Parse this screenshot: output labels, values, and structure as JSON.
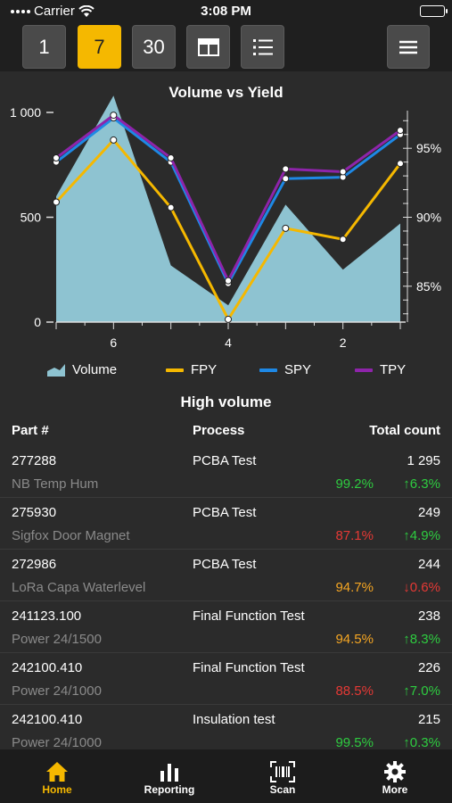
{
  "status": {
    "carrier": "Carrier",
    "time": "3:08 PM"
  },
  "toolbar": {
    "periods": [
      "1",
      "7",
      "30"
    ],
    "active_period": "7"
  },
  "colors": {
    "accent": "#f5b800",
    "volume": "#8ec3d1",
    "fpy": "#f5b800",
    "spy": "#1e88e5",
    "tpy": "#8e24aa",
    "green": "#2ecc40",
    "red": "#e53935",
    "orange": "#f5a623"
  },
  "chart_data": {
    "type": "area",
    "title": "Volume vs Yield",
    "x": [
      7,
      6.5,
      6,
      5.5,
      5,
      4.5,
      4,
      3.5,
      3,
      2.5,
      2,
      1.5,
      1
    ],
    "x_ticks": [
      "6",
      "4",
      "2"
    ],
    "y_left_ticks": [
      "0",
      "500",
      "1 000"
    ],
    "y_right_ticks": [
      "85%",
      "90%",
      "95%"
    ],
    "ylim_left": [
      0,
      1000
    ],
    "ylim_right": [
      82.4,
      97.6
    ],
    "series": [
      {
        "name": "Volume",
        "type": "area",
        "axis": "left",
        "x": [
          7,
          6,
          5,
          4,
          3,
          2,
          1
        ],
        "values": [
          600,
          1080,
          270,
          80,
          560,
          250,
          470
        ]
      },
      {
        "name": "FPY",
        "type": "line",
        "axis": "right",
        "x": [
          7,
          6,
          5,
          4,
          3,
          2,
          1
        ],
        "values": [
          91.1,
          95.6,
          90.7,
          82.6,
          89.2,
          88.4,
          93.9
        ]
      },
      {
        "name": "SPY",
        "type": "line",
        "axis": "right",
        "x": [
          7,
          6,
          5,
          4,
          3,
          2,
          1
        ],
        "values": [
          94.0,
          97.2,
          94.0,
          85.2,
          92.8,
          92.9,
          96.0
        ]
      },
      {
        "name": "TPY",
        "type": "line",
        "axis": "right",
        "x": [
          7,
          6,
          5,
          4,
          3,
          2,
          1
        ],
        "values": [
          94.3,
          97.4,
          94.3,
          85.4,
          93.5,
          93.3,
          96.3
        ]
      }
    ],
    "legend": "bottom"
  },
  "table": {
    "title": "High volume",
    "headers": {
      "part": "Part #",
      "process": "Process",
      "count": "Total count"
    },
    "rows": [
      {
        "part": "277288",
        "process": "PCBA Test",
        "count": "1 295",
        "name": "NB Temp Hum",
        "yield": "99.2%",
        "yield_color": "green",
        "trend": "↑6.3%",
        "trend_color": "green"
      },
      {
        "part": "275930",
        "process": "PCBA Test",
        "count": "249",
        "name": "Sigfox Door Magnet",
        "yield": "87.1%",
        "yield_color": "red",
        "trend": "↑4.9%",
        "trend_color": "green"
      },
      {
        "part": "272986",
        "process": "PCBA Test",
        "count": "244",
        "name": "LoRa Capa Waterlevel",
        "yield": "94.7%",
        "yield_color": "orange",
        "trend": "↓0.6%",
        "trend_color": "red"
      },
      {
        "part": "241123.100",
        "process": "Final Function Test",
        "count": "238",
        "name": "Power 24/1500",
        "yield": "94.5%",
        "yield_color": "orange",
        "trend": "↑8.3%",
        "trend_color": "green"
      },
      {
        "part": "242100.410",
        "process": "Final Function Test",
        "count": "226",
        "name": "Power 24/1000",
        "yield": "88.5%",
        "yield_color": "red",
        "trend": "↑7.0%",
        "trend_color": "green"
      },
      {
        "part": "242100.410",
        "process": "Insulation test",
        "count": "215",
        "name": "Power 24/1000",
        "yield": "99.5%",
        "yield_color": "green",
        "trend": "↑0.3%",
        "trend_color": "green"
      }
    ]
  },
  "tabbar": {
    "home": "Home",
    "reporting": "Reporting",
    "scan": "Scan",
    "more": "More"
  }
}
